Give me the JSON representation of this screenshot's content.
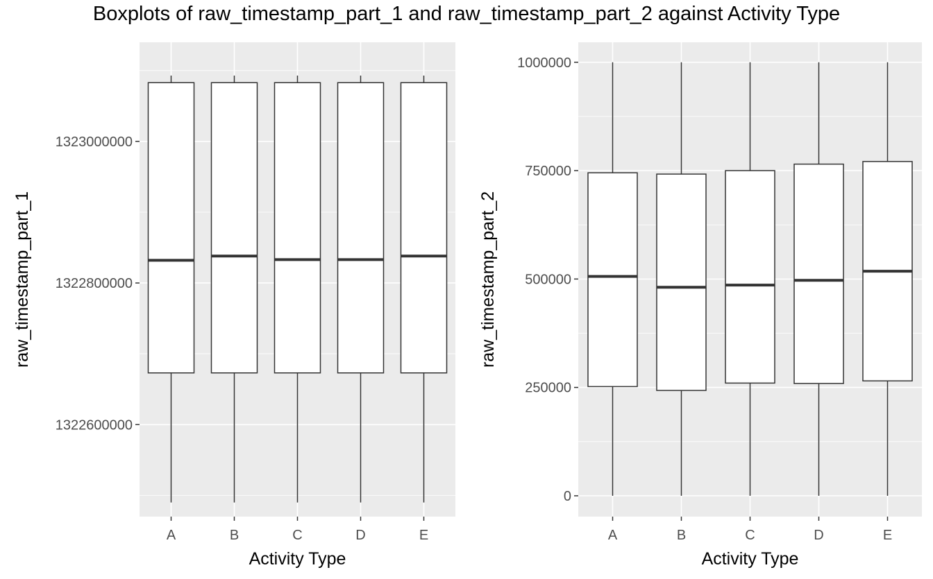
{
  "title": "Boxplots of raw_timestamp_part_1 and raw_timestamp_part_2 against Activity Type",
  "chart_data": [
    {
      "type": "boxplot",
      "xlabel": "Activity Type",
      "ylabel": "raw_timestamp_part_1",
      "categories": [
        "A",
        "B",
        "C",
        "D",
        "E"
      ],
      "yticks": [
        1322600000,
        1322800000,
        1323000000
      ],
      "ytick_labels": [
        "1322600000",
        "1322800000",
        "1323000000"
      ],
      "ylim": [
        1322470000,
        1323140000
      ],
      "grid": true,
      "boxes": [
        {
          "category": "A",
          "min": 1322490000,
          "q1": 1322673000,
          "median": 1322832000,
          "q3": 1323083000,
          "max": 1323093000
        },
        {
          "category": "B",
          "min": 1322490000,
          "q1": 1322673000,
          "median": 1322838000,
          "q3": 1323083000,
          "max": 1323093000
        },
        {
          "category": "C",
          "min": 1322490000,
          "q1": 1322673000,
          "median": 1322833000,
          "q3": 1323083000,
          "max": 1323093000
        },
        {
          "category": "D",
          "min": 1322490000,
          "q1": 1322673000,
          "median": 1322833000,
          "q3": 1323083000,
          "max": 1323093000
        },
        {
          "category": "E",
          "min": 1322490000,
          "q1": 1322673000,
          "median": 1322838000,
          "q3": 1323083000,
          "max": 1323093000
        }
      ]
    },
    {
      "type": "boxplot",
      "xlabel": "Activity Type",
      "ylabel": "raw_timestamp_part_2",
      "categories": [
        "A",
        "B",
        "C",
        "D",
        "E"
      ],
      "yticks": [
        0,
        250000,
        500000,
        750000,
        1000000
      ],
      "ytick_labels": [
        "0",
        "250000",
        "500000",
        "750000",
        "1000000"
      ],
      "ylim": [
        -48000,
        1046000
      ],
      "grid": true,
      "boxes": [
        {
          "category": "A",
          "min": 0,
          "q1": 252000,
          "median": 506000,
          "q3": 745000,
          "max": 1000000
        },
        {
          "category": "B",
          "min": 0,
          "q1": 243000,
          "median": 481000,
          "q3": 742000,
          "max": 1000000
        },
        {
          "category": "C",
          "min": 0,
          "q1": 260000,
          "median": 486000,
          "q3": 750000,
          "max": 1000000
        },
        {
          "category": "D",
          "min": 0,
          "q1": 259000,
          "median": 497000,
          "q3": 765000,
          "max": 1000000
        },
        {
          "category": "E",
          "min": 0,
          "q1": 265000,
          "median": 518000,
          "q3": 771000,
          "max": 1000000
        }
      ]
    }
  ]
}
